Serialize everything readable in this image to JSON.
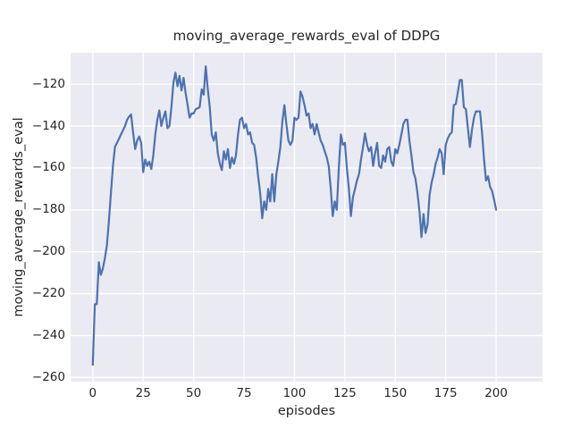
{
  "figure": {
    "title": "moving_average_rewards_eval of DDPG",
    "xlabel": "episodes",
    "ylabel": "moving_average_rewards_eval",
    "background_color": "#ffffff",
    "plot_background_color": "#eaeaf2",
    "grid_color": "#ffffff",
    "text_color": "#262626"
  },
  "chart_data": {
    "type": "line",
    "title": "moving_average_rewards_eval of DDPG",
    "xlabel": "episodes",
    "ylabel": "moving_average_rewards_eval",
    "line_color": "#4c72b0",
    "grid": true,
    "legend": false,
    "xlim": [
      -11,
      223
    ],
    "ylim": [
      -262,
      -105
    ],
    "xticks": [
      0,
      25,
      50,
      75,
      100,
      125,
      150,
      175,
      200
    ],
    "yticks": [
      -120,
      -140,
      -160,
      -180,
      -200,
      -220,
      -240,
      -260
    ],
    "x": [
      0,
      1,
      2,
      3,
      4,
      5,
      6,
      7,
      8,
      9,
      10,
      11,
      12,
      13,
      14,
      15,
      16,
      17,
      18,
      19,
      20,
      21,
      22,
      23,
      24,
      25,
      26,
      27,
      28,
      29,
      30,
      31,
      32,
      33,
      34,
      35,
      36,
      37,
      38,
      39,
      40,
      41,
      42,
      43,
      44,
      45,
      46,
      47,
      48,
      49,
      50,
      51,
      52,
      53,
      54,
      55,
      56,
      57,
      58,
      59,
      60,
      61,
      62,
      63,
      64,
      65,
      66,
      67,
      68,
      69,
      70,
      71,
      72,
      73,
      74,
      75,
      76,
      77,
      78,
      79,
      80,
      81,
      82,
      83,
      84,
      85,
      86,
      87,
      88,
      89,
      90,
      91,
      92,
      93,
      94,
      95,
      96,
      97,
      98,
      99,
      100,
      101,
      102,
      103,
      104,
      105,
      106,
      107,
      108,
      109,
      110,
      111,
      112,
      113,
      114,
      115,
      116,
      117,
      118,
      119,
      120,
      121,
      122,
      123,
      124,
      125,
      126,
      127,
      128,
      129,
      130,
      131,
      132,
      133,
      134,
      135,
      136,
      137,
      138,
      139,
      140,
      141,
      142,
      143,
      144,
      145,
      146,
      147,
      148,
      149,
      150,
      151,
      152,
      153,
      154,
      155,
      156,
      157,
      158,
      159,
      160,
      161,
      162,
      163,
      164,
      165,
      166,
      167,
      168,
      169,
      170,
      171,
      172,
      173,
      174,
      175,
      176,
      177,
      178,
      179,
      180,
      181,
      182,
      183,
      184,
      185,
      186,
      187,
      188,
      189,
      190,
      191,
      192,
      193,
      194,
      195,
      196,
      197,
      198,
      199,
      200
    ],
    "y": [
      -254,
      -225,
      -225,
      -205,
      -211,
      -208,
      -203,
      -197,
      -185,
      -172,
      -159,
      -150,
      -148,
      -146,
      -144,
      -142,
      -140,
      -137,
      -135.5,
      -134.5,
      -143,
      -151,
      -147,
      -145,
      -148,
      -162,
      -156,
      -159,
      -157,
      -160.5,
      -154,
      -144,
      -137,
      -132.5,
      -140,
      -136,
      -133,
      -141,
      -140,
      -131,
      -119,
      -114.5,
      -121,
      -116,
      -123,
      -117,
      -124,
      -130,
      -136,
      -134,
      -134,
      -132,
      -131.5,
      -131,
      -122.5,
      -125,
      -111.5,
      -122,
      -131,
      -144,
      -147,
      -143,
      -153,
      -158,
      -161,
      -152,
      -156,
      -151,
      -160,
      -155,
      -158,
      -154,
      -144,
      -137,
      -136,
      -141,
      -139,
      -144,
      -143,
      -148,
      -149,
      -155,
      -164,
      -172,
      -184,
      -176,
      -180,
      -170,
      -176,
      -163,
      -176,
      -163,
      -157,
      -150,
      -138,
      -130,
      -139,
      -147,
      -149,
      -147,
      -136,
      -137,
      -136,
      -123.5,
      -126,
      -130,
      -135,
      -134,
      -141,
      -139,
      -144,
      -139,
      -143,
      -147,
      -149,
      -152,
      -155,
      -159,
      -170,
      -183,
      -176,
      -180,
      -160,
      -144,
      -149,
      -148,
      -160,
      -170,
      -183,
      -174,
      -170,
      -166,
      -163,
      -156,
      -150,
      -143.5,
      -149,
      -152,
      -150,
      -159,
      -153,
      -148,
      -159,
      -160,
      -154,
      -157,
      -151,
      -150,
      -157,
      -159,
      -151,
      -153,
      -149,
      -144,
      -139,
      -137,
      -137,
      -147,
      -154,
      -162,
      -165,
      -172,
      -181,
      -193,
      -182,
      -191,
      -187,
      -173,
      -167,
      -163,
      -158,
      -155,
      -151,
      -153,
      -163,
      -149,
      -146,
      -144,
      -143,
      -130,
      -129.5,
      -124,
      -118,
      -118,
      -131,
      -132,
      -141,
      -150,
      -142,
      -136,
      -133,
      -133,
      -133,
      -143,
      -156,
      -166,
      -164,
      -169,
      -171,
      -175,
      -180
    ]
  }
}
